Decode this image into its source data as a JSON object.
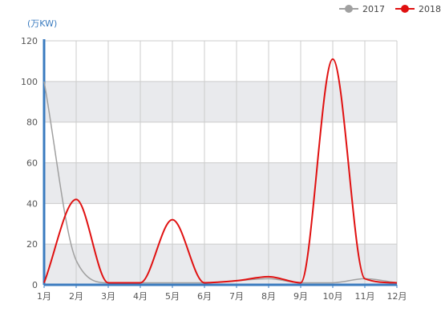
{
  "chart_data": {
    "type": "line",
    "title": "",
    "ylabel": "(万KW)",
    "xlabel": "",
    "categories": [
      "1月",
      "2月",
      "3月",
      "4月",
      "5月",
      "6月",
      "7月",
      "8月",
      "9月",
      "10月",
      "11月",
      "12月"
    ],
    "ylim": [
      0,
      120
    ],
    "yticks": [
      0,
      20,
      40,
      60,
      80,
      100,
      120
    ],
    "grid": true,
    "legend_position": "top-right",
    "series": [
      {
        "name": "2017",
        "color": "#a0a0a0",
        "values": [
          100,
          12,
          1,
          1,
          1,
          1,
          2,
          3,
          1,
          1,
          3,
          1
        ]
      },
      {
        "name": "2018",
        "color": "#e01010",
        "values": [
          1,
          42,
          1,
          1,
          32,
          1,
          2,
          4,
          1,
          111,
          3,
          1
        ]
      }
    ],
    "colors": {
      "axis": "#3a7bbf",
      "band": "#e9eaed",
      "grid": "#cccccc"
    }
  }
}
